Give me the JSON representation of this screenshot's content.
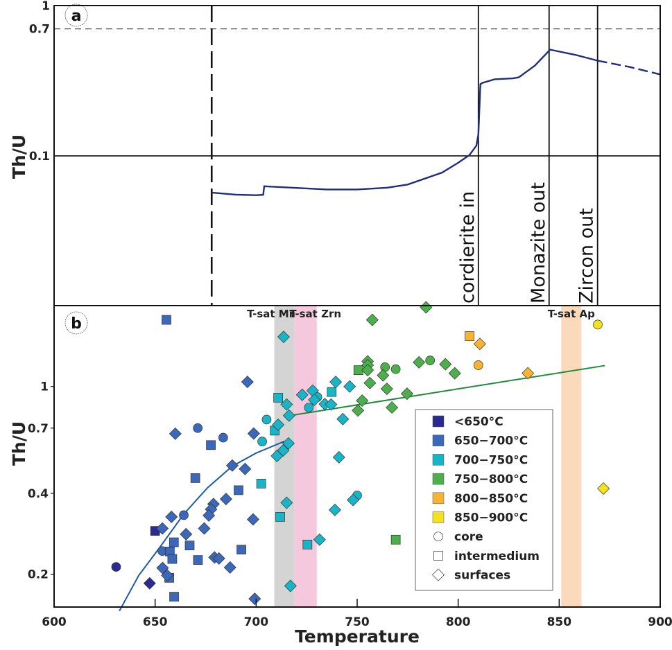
{
  "chart_data": [
    {
      "panel_label": "a",
      "type": "line",
      "xlabel": "",
      "ylabel": "Th/U",
      "xlim": [
        600,
        900
      ],
      "ylim": [
        0.0101,
        1
      ],
      "yscale": "log",
      "ytick_labels": [
        "1",
        "0.7",
        "0.1"
      ],
      "yticks": [
        1,
        0.7,
        0.1
      ],
      "reference_lines": [
        {
          "axis": "y",
          "value": 0.7,
          "style": "dashed"
        },
        {
          "axis": "y",
          "value": 0.1,
          "style": "solid"
        },
        {
          "axis": "x",
          "value": 678,
          "style": "dashed",
          "label": ""
        },
        {
          "axis": "x",
          "value": 810,
          "style": "solid",
          "label": "cordierite in"
        },
        {
          "axis": "x",
          "value": 845,
          "style": "solid",
          "label": "Monazite out"
        },
        {
          "axis": "x",
          "value": 869,
          "style": "solid",
          "label": "Zircon out"
        }
      ],
      "series": [
        {
          "style": "solid",
          "color": "#1f2d7a",
          "points": [
            [
              678,
              0.057
            ],
            [
              690,
              0.0552
            ],
            [
              700,
              0.0548
            ],
            [
              703.5,
              0.0551
            ],
            [
              704,
              0.0628
            ],
            [
              720,
              0.0612
            ],
            [
              735,
              0.0598
            ],
            [
              750,
              0.0598
            ],
            [
              765,
              0.0615
            ],
            [
              775,
              0.0645
            ],
            [
              792,
              0.0774
            ],
            [
              800,
              0.09
            ],
            [
              805.5,
              0.101
            ],
            [
              809,
              0.117
            ],
            [
              810,
              0.139
            ],
            [
              811,
              0.3
            ],
            [
              812,
              0.306
            ],
            [
              818,
              0.323
            ],
            [
              827,
              0.328
            ],
            [
              830,
              0.333
            ],
            [
              838,
              0.399
            ],
            [
              845.5,
              0.509
            ],
            [
              858,
              0.47
            ],
            [
              869,
              0.43
            ]
          ]
        },
        {
          "style": "dashed",
          "color": "#1f2d7a",
          "points": [
            [
              869,
              0.43
            ],
            [
              885,
              0.39
            ],
            [
              900,
              0.348
            ]
          ]
        }
      ]
    },
    {
      "panel_label": "b",
      "type": "scatter",
      "xlabel": "Temperature",
      "ylabel": "Th/U",
      "xlim": [
        600,
        900
      ],
      "ylim": [
        0.151,
        2.0
      ],
      "yscale": "log",
      "xticks": [
        600,
        650,
        700,
        750,
        800,
        850,
        900
      ],
      "xtick_labels": [
        "600",
        "650",
        "700",
        "750",
        "800",
        "850",
        "900"
      ],
      "yticks": [
        1,
        0.7,
        0.4,
        0.2
      ],
      "ytick_labels": [
        "1",
        "0.7",
        "0.4",
        "0.2"
      ],
      "bands": [
        {
          "label": "T-sat Mnz",
          "range": [
            709,
            719
          ],
          "color": "#d4d4d4"
        },
        {
          "label": "T-sat Zrn",
          "range": [
            719,
            730
          ],
          "color": "#f6c8dd"
        },
        {
          "label": "T-sat Ap",
          "range": [
            851,
            861
          ],
          "color": "#fbd9bb"
        }
      ],
      "fits": [
        {
          "color": "#1f5aa8",
          "points": [
            [
              632.3,
              0.146
            ],
            [
              641.9,
              0.198
            ],
            [
              652,
              0.25
            ],
            [
              664.2,
              0.335
            ],
            [
              676,
              0.42
            ],
            [
              688.2,
              0.505
            ],
            [
              700,
              0.565
            ],
            [
              714,
              0.625
            ]
          ]
        },
        {
          "color": "#1e8a3a",
          "points": [
            [
              716.7,
              0.779
            ],
            [
              872.6,
              1.196
            ]
          ]
        }
      ],
      "legend": {
        "placement": "lower-right",
        "classes": [
          {
            "key": "lt650",
            "label": "<650°C",
            "color": "#2b2b8f"
          },
          {
            "key": "c650",
            "label": "650−700°C",
            "color": "#3b68b9"
          },
          {
            "key": "c700",
            "label": "700−750°C",
            "color": "#19b5c6"
          },
          {
            "key": "c750",
            "label": "750−800°C",
            "color": "#4caf4c"
          },
          {
            "key": "c800",
            "label": "800−850°C",
            "color": "#f7b331"
          },
          {
            "key": "c850",
            "label": "850−900°C",
            "color": "#f4e21a"
          }
        ],
        "shapes": [
          {
            "key": "circle",
            "label": "core"
          },
          {
            "key": "square",
            "label": "intermedium"
          },
          {
            "key": "diamond",
            "label": "surfaces"
          }
        ]
      },
      "series": [
        {
          "class": "lt650",
          "shape": "circle",
          "points": [
            [
              630.7,
              0.213
            ]
          ]
        },
        {
          "class": "lt650",
          "shape": "square",
          "points": [
            [
              650.0,
              0.29
            ]
          ]
        },
        {
          "class": "lt650",
          "shape": "diamond",
          "points": [
            [
              647.3,
              0.185
            ]
          ]
        },
        {
          "class": "c650",
          "shape": "circle",
          "points": [
            [
              671.1,
              0.7
            ],
            [
              683.7,
              0.645
            ],
            [
              664.2,
              0.332
            ],
            [
              653.6,
              0.244
            ]
          ]
        },
        {
          "class": "c650",
          "shape": "square",
          "points": [
            [
              655.6,
              1.77
            ],
            [
              677.6,
              0.605
            ],
            [
              669.9,
              0.456
            ],
            [
              691.3,
              0.411
            ],
            [
              659.3,
              0.263
            ],
            [
              667.1,
              0.256
            ],
            [
              657.3,
              0.243
            ],
            [
              658.5,
              0.228
            ],
            [
              671.2,
              0.226
            ],
            [
              692.7,
              0.247
            ],
            [
              657,
              0.194
            ],
            [
              659.4,
              0.165
            ]
          ]
        },
        {
          "class": "c650",
          "shape": "diamond",
          "points": [
            [
              695.7,
              1.04
            ],
            [
              660,
              0.667
            ],
            [
              698.8,
              0.668
            ],
            [
              688.2,
              0.508
            ],
            [
              694.5,
              0.493
            ],
            [
              685.1,
              0.381
            ],
            [
              678.9,
              0.365
            ],
            [
              677.7,
              0.349
            ],
            [
              676.6,
              0.331
            ],
            [
              658.1,
              0.327
            ],
            [
              698.5,
              0.32
            ],
            [
              653.6,
              0.296
            ],
            [
              665.3,
              0.282
            ],
            [
              674.3,
              0.296
            ],
            [
              679.4,
              0.231
            ],
            [
              681.6,
              0.229
            ],
            [
              687.1,
              0.212
            ],
            [
              653.7,
              0.211
            ],
            [
              656,
              0.198
            ],
            [
              699.3,
              0.162
            ]
          ]
        },
        {
          "class": "c700",
          "shape": "circle",
          "points": [
            [
              705.2,
              0.753
            ],
            [
              703,
              0.624
            ],
            [
              730.3,
              0.913
            ],
            [
              726.1,
              0.835
            ],
            [
              750,
              0.393
            ]
          ]
        },
        {
          "class": "c700",
          "shape": "square",
          "points": [
            [
              710.9,
              0.908
            ],
            [
              709.2,
              0.685
            ],
            [
              702.5,
              0.435
            ],
            [
              711.9,
              0.327
            ],
            [
              737.4,
              0.954
            ],
            [
              725.4,
              0.258
            ]
          ]
        },
        {
          "class": "c700",
          "shape": "diamond",
          "points": [
            [
              713.6,
              1.53
            ],
            [
              715.1,
              0.857
            ],
            [
              716.3,
              0.779
            ],
            [
              710.9,
              0.72
            ],
            [
              716,
              0.614
            ],
            [
              713.4,
              0.578
            ],
            [
              710.3,
              0.551
            ],
            [
              715.1,
              0.369
            ],
            [
              717,
              0.181
            ],
            [
              739.4,
              1.04
            ],
            [
              746.3,
              1.0
            ],
            [
              722.8,
              0.931
            ],
            [
              728,
              0.965
            ],
            [
              728.8,
              0.892
            ],
            [
              734,
              0.86
            ],
            [
              737.1,
              0.857
            ],
            [
              742.9,
              0.756
            ],
            [
              741,
              0.545
            ],
            [
              748,
              0.378
            ],
            [
              739,
              0.347
            ],
            [
              731.4,
              0.269
            ]
          ]
        },
        {
          "class": "c750",
          "shape": "circle",
          "points": [
            [
              763.8,
              1.18
            ],
            [
              769.1,
              1.16
            ],
            [
              786.1,
              1.25
            ]
          ]
        },
        {
          "class": "c750",
          "shape": "square",
          "points": [
            [
              750.6,
              1.15
            ],
            [
              769.1,
              0.269
            ]
          ]
        },
        {
          "class": "c750",
          "shape": "diamond",
          "points": [
            [
              784.1,
              1.97
            ],
            [
              757.5,
              1.77
            ],
            [
              755.2,
              1.24
            ],
            [
              755.2,
              1.2
            ],
            [
              755.2,
              1.15
            ],
            [
              780.6,
              1.23
            ],
            [
              793.7,
              1.21
            ],
            [
              798.3,
              1.12
            ],
            [
              762.8,
              1.1
            ],
            [
              756.3,
              1.03
            ],
            [
              764.7,
              0.98
            ],
            [
              774.7,
              0.94
            ],
            [
              752.5,
              0.886
            ],
            [
              750.4,
              0.814
            ],
            [
              767.2,
              0.835
            ]
          ]
        },
        {
          "class": "c800",
          "shape": "circle",
          "points": [
            [
              810,
              1.2
            ]
          ]
        },
        {
          "class": "c800",
          "shape": "square",
          "points": [
            [
              805.6,
              1.54
            ]
          ]
        },
        {
          "class": "c800",
          "shape": "diamond",
          "points": [
            [
              810.7,
              1.44
            ],
            [
              834.5,
              1.12
            ]
          ]
        },
        {
          "class": "c850",
          "shape": "circle",
          "points": [
            [
              869.1,
              1.7
            ]
          ]
        },
        {
          "class": "c850",
          "shape": "diamond",
          "points": [
            [
              871.9,
              0.417
            ]
          ]
        }
      ]
    }
  ]
}
